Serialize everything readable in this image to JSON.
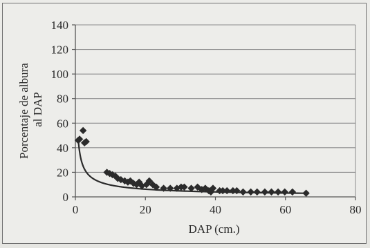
{
  "chart_data": {
    "type": "scatter",
    "title": "",
    "xlabel": "DAP (cm.)",
    "ylabel_lines": [
      "Porcentaje de albura",
      "al DAP"
    ],
    "xlim": [
      0,
      80
    ],
    "ylim": [
      0,
      140
    ],
    "xticks": [
      0,
      20,
      40,
      60,
      80
    ],
    "yticks": [
      0,
      20,
      40,
      60,
      80,
      100,
      120,
      140
    ],
    "grid": "horizontal",
    "legend": "none",
    "colors": {
      "points": "#2b2b2b",
      "trend": "#2b2b2b",
      "grid": "#8c8c8c",
      "axis": "#555555"
    },
    "series": [
      {
        "values": [
          [
            0.8,
            46
          ],
          [
            1.2,
            47
          ],
          [
            2.2,
            54
          ],
          [
            2.6,
            44
          ],
          [
            3.1,
            45
          ],
          [
            9.0,
            20
          ],
          [
            9.8,
            19
          ],
          [
            10.6,
            18
          ],
          [
            11.4,
            17
          ],
          [
            12.1,
            15
          ],
          [
            13.0,
            14
          ],
          [
            14.1,
            13
          ],
          [
            15.0,
            12
          ],
          [
            15.7,
            13
          ],
          [
            16.6,
            11
          ],
          [
            17.5,
            10
          ],
          [
            18.2,
            12
          ],
          [
            19.0,
            9
          ],
          [
            20.3,
            10
          ],
          [
            21.1,
            13
          ],
          [
            22.1,
            10
          ],
          [
            23.1,
            8
          ],
          [
            25.2,
            7
          ],
          [
            27.1,
            7
          ],
          [
            29.0,
            7
          ],
          [
            30.2,
            8
          ],
          [
            31.1,
            8
          ],
          [
            33.1,
            7
          ],
          [
            34.9,
            8
          ],
          [
            36.1,
            6
          ],
          [
            37.1,
            7
          ],
          [
            38.1,
            5
          ],
          [
            38.7,
            4
          ],
          [
            39.3,
            7
          ],
          [
            41.2,
            5
          ],
          [
            42.1,
            5
          ],
          [
            43.3,
            5
          ],
          [
            45.0,
            5
          ],
          [
            46.1,
            5
          ],
          [
            47.9,
            4
          ],
          [
            50.1,
            4
          ],
          [
            51.9,
            4
          ],
          [
            54.1,
            4
          ],
          [
            56.0,
            4
          ],
          [
            57.9,
            4
          ],
          [
            59.8,
            4
          ],
          [
            62.0,
            4
          ],
          [
            65.9,
            3
          ]
        ]
      }
    ],
    "trendline": {
      "type": "power",
      "a": 41.3,
      "b": -0.63,
      "x_start": 0.78,
      "x_end": 66
    }
  }
}
